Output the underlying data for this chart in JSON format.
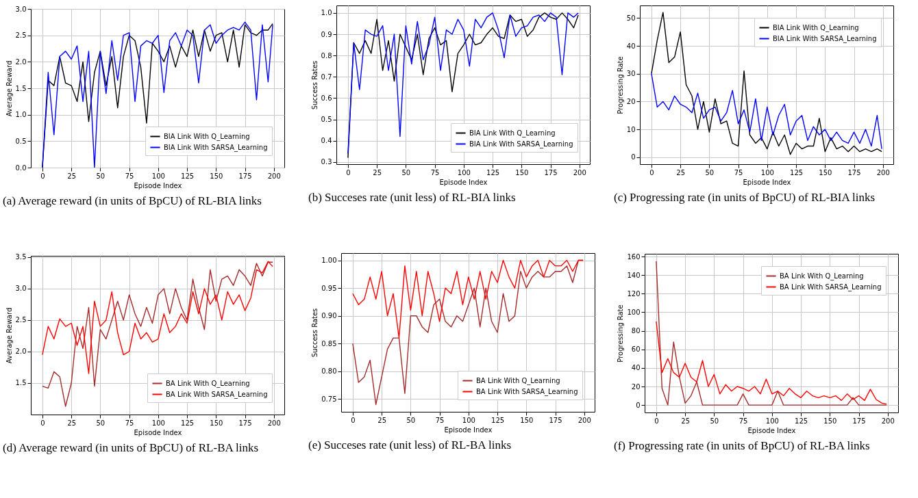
{
  "chart_data": [
    {
      "type": "line",
      "xlabel": "Episode Index",
      "ylabel": "Average Reward",
      "x": [
        0,
        5,
        10,
        15,
        20,
        25,
        30,
        35,
        40,
        45,
        50,
        55,
        60,
        65,
        70,
        75,
        80,
        85,
        90,
        95,
        100,
        105,
        110,
        115,
        120,
        125,
        130,
        135,
        140,
        145,
        150,
        155,
        160,
        165,
        170,
        175,
        180,
        185,
        190,
        195,
        199
      ],
      "xlim": [
        -10,
        209
      ],
      "xticks": [
        0,
        25,
        50,
        75,
        100,
        125,
        150,
        175,
        200
      ],
      "ylim": [
        0,
        3
      ],
      "yticks": [
        {
          "value": 0,
          "label": "0.0"
        },
        0.5,
        {
          "value": 1,
          "label": "1.0"
        },
        1.5,
        {
          "value": 2,
          "label": "2.0"
        },
        2.5,
        {
          "value": 3,
          "label": "3.0"
        }
      ],
      "grid": true,
      "legend": "bottom right",
      "annotations": [
        "(a) Average reward (in units of BpCU) of RL-BIA links"
      ],
      "series": [
        {
          "name": "BIA Link With Q_Learning",
          "color": "#000000",
          "values": [
            0,
            1.65,
            1.55,
            2.1,
            1.6,
            1.55,
            1.25,
            2.0,
            0.87,
            1.8,
            2.2,
            1.55,
            2.1,
            1.13,
            2.1,
            2.5,
            2.4,
            1.9,
            0.84,
            2.35,
            2.2,
            2.0,
            2.3,
            1.9,
            2.3,
            2.1,
            2.6,
            2.1,
            2.6,
            2.2,
            2.5,
            2.55,
            2.0,
            2.6,
            1.9,
            2.7,
            2.55,
            2.5,
            2.6,
            2.6,
            2.72
          ]
        },
        {
          "name": "BIA Link With SARSA_Learning",
          "color": "#0000ff",
          "values": [
            0,
            1.8,
            0.62,
            2.1,
            2.2,
            2.05,
            2.3,
            1.25,
            2.2,
            0,
            2.2,
            1.4,
            2.4,
            1.65,
            2.5,
            2.55,
            1.25,
            2.3,
            2.4,
            2.35,
            2.5,
            1.42,
            2.4,
            2.55,
            2.3,
            2.6,
            2.5,
            1.6,
            2.6,
            2.7,
            2.35,
            2.5,
            2.6,
            2.65,
            2.6,
            2.75,
            2.6,
            1.28,
            2.7,
            1.62,
            2.7
          ]
        }
      ]
    },
    {
      "type": "line",
      "xlabel": "Episode Index",
      "ylabel": "Success Rates",
      "x": [
        0,
        5,
        10,
        15,
        20,
        25,
        30,
        35,
        40,
        45,
        50,
        55,
        60,
        65,
        70,
        75,
        80,
        85,
        90,
        95,
        100,
        105,
        110,
        115,
        120,
        125,
        130,
        135,
        140,
        145,
        150,
        155,
        160,
        165,
        170,
        175,
        180,
        185,
        190,
        195,
        199
      ],
      "xlim": [
        -10,
        209
      ],
      "xticks": [
        0,
        25,
        50,
        75,
        100,
        125,
        150,
        175,
        200
      ],
      "ylim": [
        0.29,
        1.035
      ],
      "yticks": [
        0.3,
        0.4,
        0.5,
        0.6,
        0.7,
        0.8,
        0.9,
        {
          "value": 1,
          "label": "1.0"
        }
      ],
      "grid": true,
      "legend": "bottom right",
      "annotations": [
        "(b) Succeses rate (unit less) of RL-BIA links"
      ],
      "series": [
        {
          "name": "BIA Link With Q_Learning",
          "color": "#000000",
          "values": [
            0.32,
            0.86,
            0.81,
            0.87,
            0.81,
            0.97,
            0.73,
            0.87,
            0.68,
            0.9,
            0.84,
            0.78,
            0.9,
            0.71,
            0.88,
            0.93,
            0.85,
            0.87,
            0.63,
            0.81,
            0.85,
            0.9,
            0.85,
            0.86,
            0.9,
            0.93,
            0.89,
            0.88,
            0.99,
            0.96,
            0.97,
            0.89,
            0.92,
            0.98,
            1.0,
            0.98,
            0.97,
            1.0,
            0.97,
            0.93,
            0.99
          ]
        },
        {
          "name": "BIA Link With SARSA_Learning",
          "color": "#0000ff",
          "values": [
            0.34,
            0.86,
            0.64,
            0.92,
            0.9,
            0.89,
            0.94,
            0.73,
            0.9,
            0.42,
            0.94,
            0.76,
            0.96,
            0.78,
            0.85,
            0.98,
            0.73,
            0.92,
            0.9,
            0.97,
            0.92,
            0.75,
            0.97,
            0.93,
            0.98,
            1.0,
            0.92,
            0.79,
            0.99,
            0.89,
            0.93,
            0.94,
            0.98,
            0.99,
            0.96,
            1.0,
            0.98,
            0.71,
            1.0,
            0.98,
            1.0
          ]
        }
      ]
    },
    {
      "type": "line",
      "xlabel": "Episode Index",
      "ylabel": "Progressing Rate",
      "x": [
        0,
        5,
        10,
        15,
        20,
        25,
        30,
        35,
        40,
        45,
        50,
        55,
        60,
        65,
        70,
        75,
        80,
        85,
        90,
        95,
        100,
        105,
        110,
        115,
        120,
        125,
        130,
        135,
        140,
        145,
        150,
        155,
        160,
        165,
        170,
        175,
        180,
        185,
        190,
        195,
        199
      ],
      "xlim": [
        -10,
        209
      ],
      "xticks": [
        0,
        25,
        50,
        75,
        100,
        125,
        150,
        175,
        200
      ],
      "ylim": [
        -2.5,
        54.5
      ],
      "yticks": [
        0,
        10,
        20,
        30,
        40,
        50
      ],
      "grid": true,
      "legend": "top right",
      "annotations": [
        "(c) Progressing rate (in units of BpCU) of RL-BIA links"
      ],
      "series": [
        {
          "name": "BIA Link With Q_Learning",
          "color": "#000000",
          "values": [
            30,
            42,
            52,
            34,
            36,
            45,
            26,
            22,
            10,
            20,
            9,
            21,
            12,
            13,
            5,
            4,
            31,
            8,
            5,
            7,
            3,
            9,
            4,
            8,
            1,
            5,
            3,
            4,
            4,
            14,
            2,
            7,
            3,
            4,
            2,
            4,
            2,
            3,
            2,
            3,
            2
          ]
        },
        {
          "name": "BIA Link With SARSA_Learning",
          "color": "#0000ff",
          "values": [
            30,
            18,
            20,
            17,
            22,
            19,
            18,
            16,
            23,
            14,
            17,
            18,
            13,
            16,
            24,
            12,
            17,
            9,
            21,
            6,
            18,
            8,
            15,
            19,
            8,
            13,
            15,
            6,
            11,
            8,
            10,
            6,
            9,
            6,
            5,
            9,
            5,
            10,
            4,
            15,
            3
          ]
        }
      ]
    },
    {
      "type": "line",
      "xlabel": "Episode Index",
      "ylabel": "Average Reward",
      "x": [
        0,
        5,
        10,
        15,
        20,
        25,
        30,
        35,
        40,
        45,
        50,
        55,
        60,
        65,
        70,
        75,
        80,
        85,
        90,
        95,
        100,
        105,
        110,
        115,
        120,
        125,
        130,
        135,
        140,
        145,
        150,
        155,
        160,
        165,
        170,
        175,
        180,
        185,
        190,
        195,
        199
      ],
      "xlim": [
        -10,
        209
      ],
      "xticks": [
        0,
        25,
        50,
        75,
        100,
        125,
        150,
        175,
        200
      ],
      "ylim": [
        1,
        3.52
      ],
      "yticks": [
        1.5,
        {
          "value": 2,
          "label": "2.0"
        },
        2.5,
        {
          "value": 3,
          "label": "3.0"
        },
        3.5
      ],
      "grid": true,
      "legend": "bottom right",
      "annotations": [
        "(d) Average reward (in units of BpCU) of RL-BA links"
      ],
      "series": [
        {
          "name": "BA Link With Q_Learning",
          "color": "#a52a2a",
          "values": [
            1.45,
            1.42,
            1.68,
            1.6,
            1.13,
            1.5,
            2.4,
            2.05,
            2.7,
            1.45,
            2.35,
            2.2,
            2.5,
            2.8,
            2.5,
            2.9,
            2.6,
            2.4,
            2.7,
            2.45,
            2.9,
            3.0,
            2.6,
            3.0,
            2.7,
            2.5,
            3.15,
            2.7,
            2.35,
            3.3,
            2.8,
            3.15,
            3.2,
            3.05,
            3.3,
            3.2,
            3.05,
            3.4,
            3.2,
            3.42,
            3.42
          ]
        },
        {
          "name": "BA Link With SARSA_Learning",
          "color": "#ff0000",
          "values": [
            1.95,
            2.4,
            2.2,
            2.52,
            2.4,
            2.45,
            2.1,
            2.4,
            1.65,
            2.8,
            2.4,
            2.5,
            2.95,
            2.3,
            1.95,
            2.0,
            2.45,
            2.2,
            2.3,
            2.15,
            2.2,
            2.6,
            2.3,
            2.4,
            2.6,
            2.45,
            2.95,
            2.6,
            3.0,
            2.75,
            2.9,
            2.5,
            2.95,
            2.75,
            2.9,
            2.65,
            2.85,
            3.3,
            3.25,
            3.43,
            3.35
          ]
        }
      ]
    },
    {
      "type": "line",
      "xlabel": "Episode Index",
      "ylabel": "Success Rates",
      "x": [
        0,
        5,
        10,
        15,
        20,
        25,
        30,
        35,
        40,
        45,
        50,
        55,
        60,
        65,
        70,
        75,
        80,
        85,
        90,
        95,
        100,
        105,
        110,
        115,
        120,
        125,
        130,
        135,
        140,
        145,
        150,
        155,
        160,
        165,
        170,
        175,
        180,
        185,
        190,
        195,
        199
      ],
      "xlim": [
        -10,
        209
      ],
      "xticks": [
        0,
        25,
        50,
        75,
        100,
        125,
        150,
        175,
        200
      ],
      "ylim": [
        0.727,
        1.013
      ],
      "yticks": [
        0.75,
        {
          "value": 0.8,
          "label": "0.80"
        },
        0.85,
        {
          "value": 0.9,
          "label": "0.90"
        },
        0.95,
        {
          "value": 1,
          "label": "1.00"
        }
      ],
      "grid": true,
      "legend": "bottom right",
      "annotations": [
        "(e) Succeses rate (unit less) of RL-BA links"
      ],
      "series": [
        {
          "name": "BA Link With Q_Learning",
          "color": "#a52a2a",
          "values": [
            0.85,
            0.78,
            0.79,
            0.82,
            0.74,
            0.79,
            0.84,
            0.86,
            0.86,
            0.76,
            0.9,
            0.9,
            0.88,
            0.87,
            0.92,
            0.93,
            0.89,
            0.88,
            0.9,
            0.89,
            0.92,
            0.95,
            0.88,
            0.95,
            0.89,
            0.87,
            0.94,
            0.89,
            0.9,
            0.98,
            0.95,
            0.97,
            0.98,
            0.97,
            0.97,
            0.98,
            0.98,
            0.99,
            0.96,
            1.0,
            1.0
          ]
        },
        {
          "name": "BA Link With SARSA_Learning",
          "color": "#ff0000",
          "values": [
            0.94,
            0.92,
            0.93,
            0.97,
            0.93,
            0.98,
            0.9,
            0.94,
            0.86,
            0.99,
            0.91,
            0.98,
            0.9,
            0.98,
            0.94,
            0.89,
            0.95,
            0.94,
            0.98,
            0.92,
            0.97,
            0.93,
            0.98,
            0.93,
            0.98,
            0.96,
            1.0,
            0.97,
            0.95,
            1.0,
            0.97,
            0.99,
            1.0,
            0.97,
            1.0,
            0.99,
            0.99,
            1.0,
            0.98,
            1.0,
            1.0
          ]
        }
      ]
    },
    {
      "type": "line",
      "xlabel": "Episode Index",
      "ylabel": "Progressing Rate",
      "x": [
        0,
        5,
        10,
        15,
        20,
        25,
        30,
        35,
        40,
        45,
        50,
        55,
        60,
        65,
        70,
        75,
        80,
        85,
        90,
        95,
        100,
        105,
        110,
        115,
        120,
        125,
        130,
        135,
        140,
        145,
        150,
        155,
        160,
        165,
        170,
        175,
        180,
        185,
        190,
        195,
        199
      ],
      "xlim": [
        -10,
        209
      ],
      "xticks": [
        0,
        25,
        50,
        75,
        100,
        125,
        150,
        175,
        200
      ],
      "ylim": [
        -8,
        163
      ],
      "yticks": [
        0,
        20,
        40,
        60,
        80,
        100,
        120,
        140,
        160
      ],
      "grid": true,
      "legend": "top right",
      "annotations": [
        "(f) Progressing rate (in units of BpCU) of RL-BA links"
      ],
      "series": [
        {
          "name": "BA Link With Q_Learning",
          "color": "#a52a2a",
          "values": [
            155,
            18,
            0,
            68,
            30,
            2,
            10,
            25,
            0,
            0,
            0,
            0,
            0,
            0,
            0,
            12,
            0,
            0,
            0,
            0,
            0,
            15,
            0,
            0,
            0,
            0,
            0,
            0,
            0,
            0,
            0,
            0,
            0,
            0,
            8,
            0,
            0,
            0,
            0,
            0,
            0
          ]
        },
        {
          "name": "BA Link With SARSA_Learning",
          "color": "#ff0000",
          "values": [
            90,
            35,
            50,
            35,
            30,
            45,
            30,
            25,
            48,
            20,
            33,
            12,
            22,
            15,
            20,
            18,
            15,
            20,
            12,
            28,
            12,
            15,
            10,
            18,
            12,
            8,
            15,
            10,
            8,
            10,
            8,
            10,
            5,
            12,
            6,
            10,
            5,
            17,
            6,
            2,
            1
          ]
        }
      ]
    }
  ]
}
